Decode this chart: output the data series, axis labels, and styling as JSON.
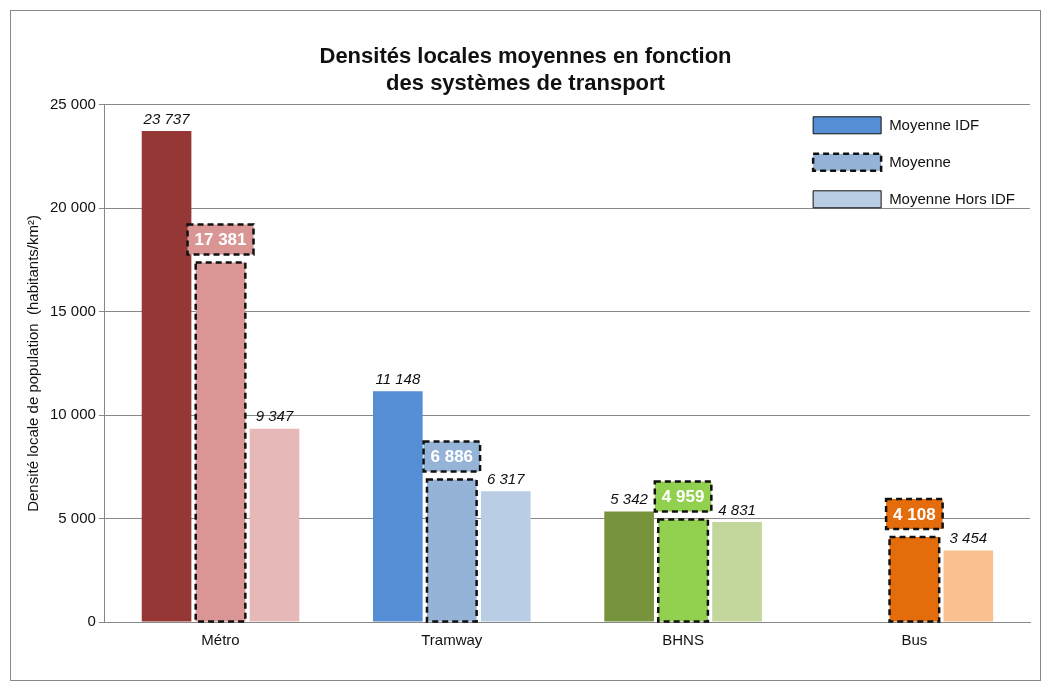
{
  "chart_data": {
    "type": "bar",
    "title": "Densités locales moyennes en fonction\ndes systèmes de transport",
    "ylabel": "Densité locale de population  (habitants/km²)",
    "categories": [
      "Métro",
      "Tramway",
      "BHNS",
      "Bus"
    ],
    "series": [
      {
        "name": "Moyenne IDF",
        "color": "#558ed5",
        "colors": [
          "#953735",
          "#558ed5",
          "#77933c",
          "#e46c0a"
        ],
        "values": [
          23737,
          11148,
          5342,
          null
        ],
        "value_labels": [
          "23 737",
          "11 148",
          "5 342",
          null
        ]
      },
      {
        "name": "Moyenne",
        "color": "#95b3d7",
        "colors": [
          "#d99694",
          "#95b3d7",
          "#92d050",
          "#e46c0a"
        ],
        "line_style": "dashed",
        "values": [
          17381,
          6886,
          4959,
          4108
        ],
        "value_labels": [
          "17 381",
          "6 886",
          "4 959",
          "4 108"
        ]
      },
      {
        "name": "Moyenne Hors IDF",
        "color": "#b9cde5",
        "colors": [
          "#e6b9b8",
          "#b9cde5",
          "#c3d69b",
          "#fac090"
        ],
        "values": [
          9347,
          6317,
          4831,
          3454
        ],
        "value_labels": [
          "9 347",
          "6 317",
          "4 831",
          "3 454"
        ]
      }
    ],
    "ylim": [
      0,
      25000
    ],
    "yticks": [
      {
        "value": 0,
        "label": "0"
      },
      {
        "value": 5000,
        "label": "5 000"
      },
      {
        "value": 10000,
        "label": "10 000"
      },
      {
        "value": 15000,
        "label": "15 000"
      },
      {
        "value": 20000,
        "label": "20 000"
      },
      {
        "value": 25000,
        "label": "25 000"
      }
    ],
    "grid": "y",
    "legend": "top right"
  }
}
